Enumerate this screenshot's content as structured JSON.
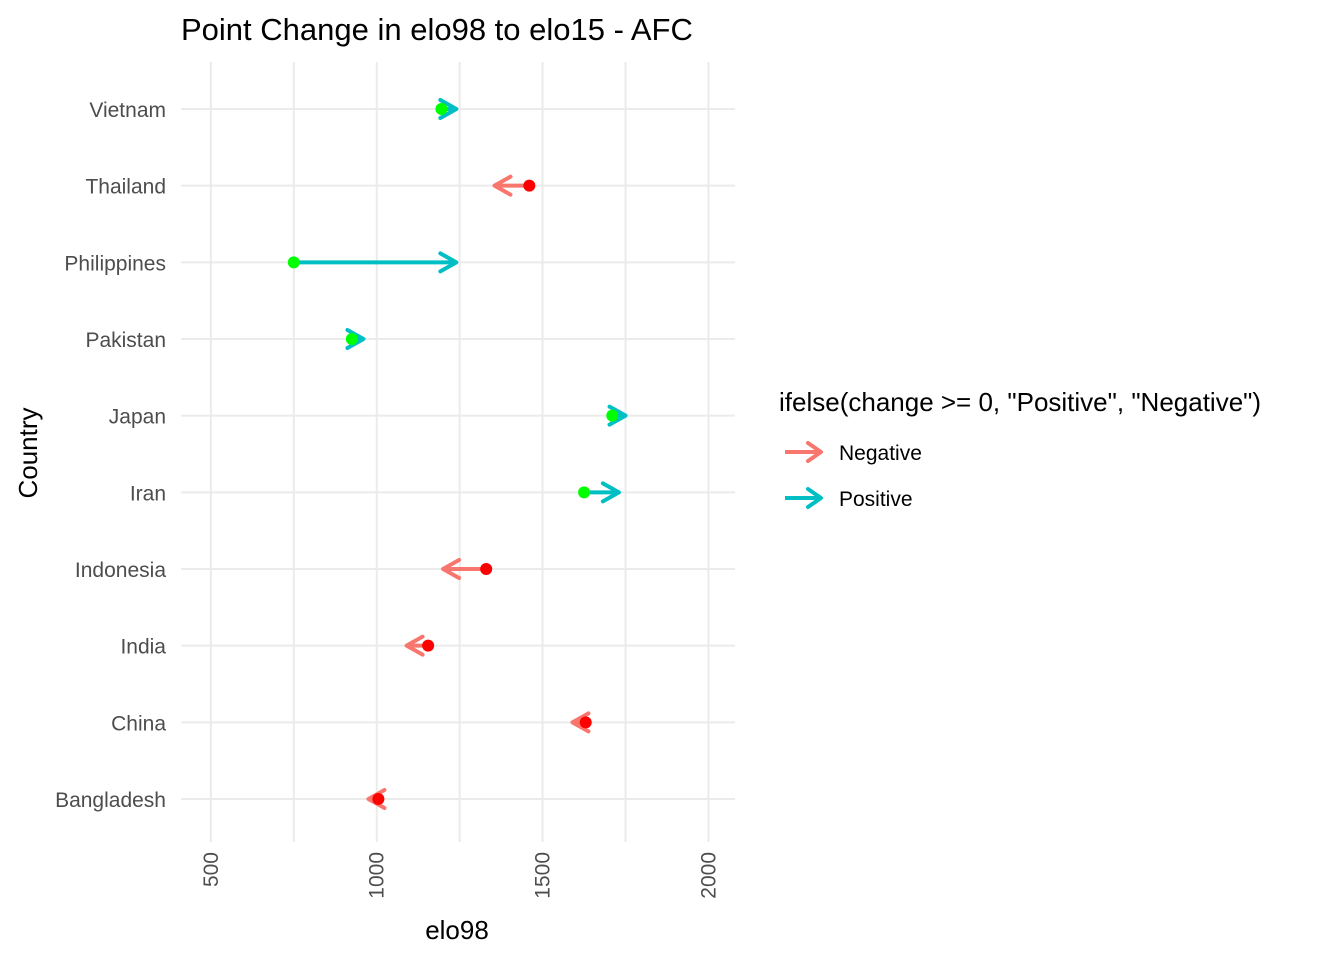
{
  "chart_data": {
    "type": "arrow",
    "title": "Point Change in elo98 to elo15 - AFC",
    "xlabel": "elo98",
    "ylabel": "Country",
    "xlim": [
      410,
      2080
    ],
    "xticks": [
      500,
      1000,
      1500,
      2000
    ],
    "grid": true,
    "legend": {
      "title": "ifelse(change >= 0, \"Positive\", \"Negative\")",
      "placement": "right",
      "entries": [
        {
          "label": "Negative",
          "color": "#F8766D"
        },
        {
          "label": "Positive",
          "color": "#00BFC4"
        }
      ]
    },
    "colors": {
      "negative_arrow": "#F8766D",
      "positive_arrow": "#00BFC4",
      "negative_point": "#FF0000",
      "positive_point": "#00FF00"
    },
    "countries": [
      {
        "name": "Vietnam",
        "elo98": 1195,
        "elo15": 1240,
        "change": "Positive"
      },
      {
        "name": "Thailand",
        "elo98": 1460,
        "elo15": 1355,
        "change": "Negative"
      },
      {
        "name": "Philippines",
        "elo98": 750,
        "elo15": 1240,
        "change": "Positive"
      },
      {
        "name": "Pakistan",
        "elo98": 925,
        "elo15": 960,
        "change": "Positive"
      },
      {
        "name": "Japan",
        "elo98": 1710,
        "elo15": 1750,
        "change": "Positive"
      },
      {
        "name": "Iran",
        "elo98": 1625,
        "elo15": 1730,
        "change": "Positive"
      },
      {
        "name": "Indonesia",
        "elo98": 1330,
        "elo15": 1200,
        "change": "Negative"
      },
      {
        "name": "India",
        "elo98": 1155,
        "elo15": 1090,
        "change": "Negative"
      },
      {
        "name": "China",
        "elo98": 1630,
        "elo15": 1590,
        "change": "Negative"
      },
      {
        "name": "Bangladesh",
        "elo98": 1005,
        "elo15": 975,
        "change": "Negative"
      }
    ]
  }
}
